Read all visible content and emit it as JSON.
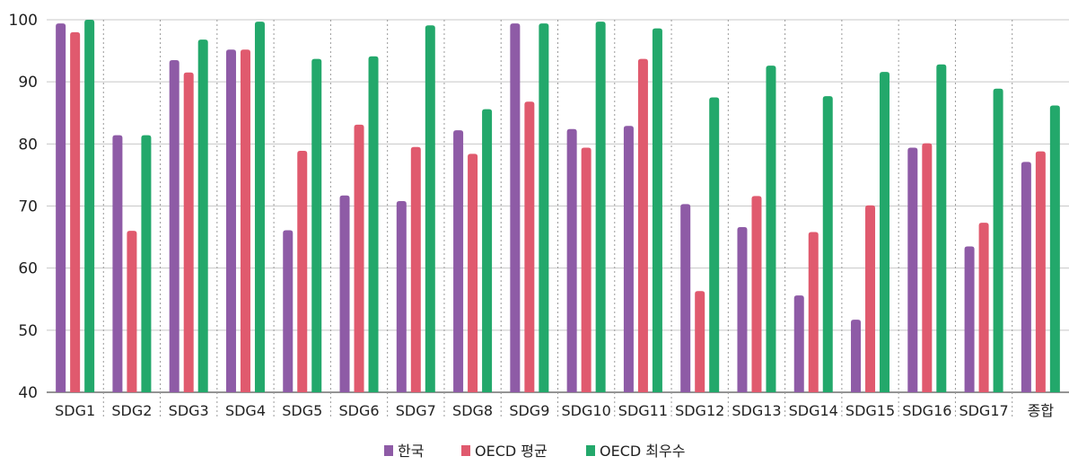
{
  "chart_data": {
    "type": "bar",
    "title": "",
    "xlabel": "",
    "ylabel": "",
    "ylim": [
      40,
      100
    ],
    "yticks": [
      40,
      50,
      60,
      70,
      80,
      90,
      100
    ],
    "grid": "horizontal-solid, vertical-dotted-separators",
    "legend_position": "bottom-center",
    "categories": [
      "SDG1",
      "SDG2",
      "SDG3",
      "SDG4",
      "SDG5",
      "SDG6",
      "SDG7",
      "SDG8",
      "SDG9",
      "SDG10",
      "SDG11",
      "SDG12",
      "SDG13",
      "SDG14",
      "SDG15",
      "SDG16",
      "SDG17",
      "종합"
    ],
    "series": [
      {
        "name": "한국",
        "color": "#8e5ba6",
        "values": [
          99.4,
          81.4,
          93.5,
          95.2,
          66.1,
          71.7,
          70.8,
          82.2,
          99.4,
          82.4,
          82.9,
          70.3,
          66.6,
          55.6,
          51.7,
          79.4,
          63.5,
          77.1
        ]
      },
      {
        "name": "OECD 평균",
        "color": "#e05a6e",
        "values": [
          98.0,
          66.0,
          91.5,
          95.2,
          78.9,
          83.1,
          79.5,
          78.4,
          86.8,
          79.4,
          93.7,
          56.3,
          71.6,
          65.8,
          70.1,
          80.1,
          67.3,
          78.8
        ]
      },
      {
        "name": "OECD 최우수",
        "color": "#23a86b",
        "values": [
          100,
          81.4,
          96.8,
          99.7,
          93.7,
          94.1,
          99.1,
          85.6,
          99.4,
          99.7,
          98.6,
          87.5,
          92.6,
          87.7,
          91.6,
          92.8,
          88.9,
          86.2
        ]
      }
    ]
  }
}
